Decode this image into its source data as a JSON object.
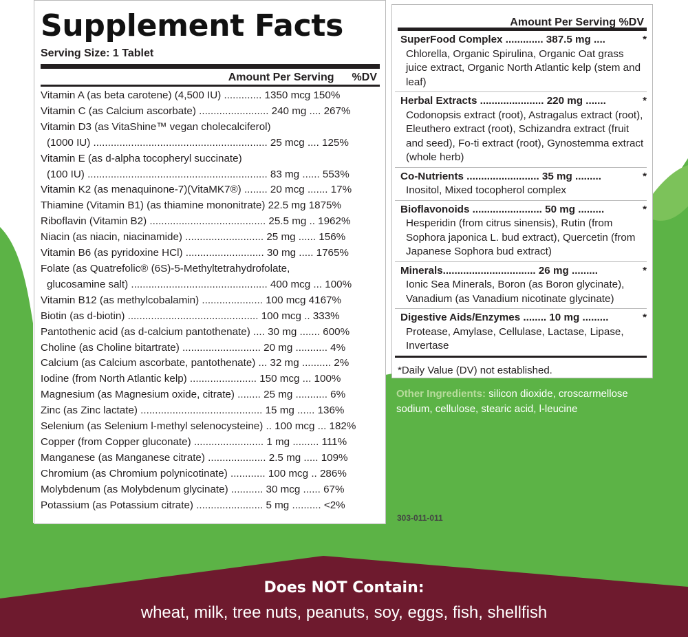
{
  "panel": {
    "title": "Supplement Facts",
    "serving_size": "Serving Size: 1 Tablet",
    "head_amount": "Amount Per Serving",
    "head_dv": "%DV",
    "rows": [
      "Vitamin A (as beta carotene) (4,500 IU) ............. 1350 mcg  150%",
      "Vitamin C (as Calcium ascorbate) ........................ 240 mg .... 267%",
      "Vitamin D3  (as VitaShine™ vegan cholecalciferol)",
      "(1000 IU) ............................................................ 25 mcg .... 125%",
      "Vitamin E (as d-alpha tocopheryl succinate)",
      "(100 IU) .............................................................. 83 mg ...... 553%",
      "Vitamin K2 (as menaquinone-7)(VitaMK7®) ........ 20 mcg ....... 17%",
      "Thiamine (Vitamin B1) (as thiamine mononitrate) 22.5 mg   1875%",
      "Riboflavin (Vitamin B2) ........................................ 25.5 mg .. 1962%",
      "Niacin (as niacin, niacinamide) ........................... 25 mg ...... 156%",
      "Vitamin B6 (as pyridoxine HCl) ........................... 30 mg ..... 1765%",
      "Folate (as Quatrefolic® (6S)-5-Methyltetrahydrofolate,",
      "glucosamine salt) ............................................... 400 mcg ... 100%",
      "Vitamin B12 (as methylcobalamin) ..................... 100 mcg   4167%",
      "Biotin (as d-biotin) ............................................. 100 mcg .. 333%",
      "Pantothenic acid (as d-calcium pantothenate) .... 30 mg ....... 600%",
      "Choline (as Choline bitartrate) ........................... 20 mg ........... 4%",
      "Calcium (as Calcium ascorbate, pantothenate) ... 32 mg .......... 2%",
      "Iodine (from North Atlantic kelp) ....................... 150 mcg ... 100%",
      "Magnesium (as Magnesium oxide, citrate) ........ 25 mg ........... 6%",
      "Zinc (as Zinc lactate) .......................................... 15 mg ...... 136%",
      "Selenium (as Selenium l-methyl selenocysteine) .. 100 mcg ... 182%",
      "Copper (from Copper gluconate) ........................ 1 mg ......... 111%",
      "Manganese (as Manganese citrate) .................... 2.5 mg ..... 109%",
      "Chromium (as Chromium polynicotinate) ............ 100 mcg .. 286%",
      "Molybdenum (as Molybdenum glycinate) ........... 30 mcg ...... 67%",
      "Potassium (as Potassium citrate) ....................... 5 mg .......... <2%"
    ]
  },
  "right": {
    "head": "Amount Per Serving  %DV",
    "groups": [
      {
        "title": "SuperFood Complex ............. 387.5 mg ....",
        "star": "*",
        "text": "Chlorella, Organic Spirulina, Organic Oat grass juice extract, Organic North Atlantic kelp (stem and leaf)"
      },
      {
        "title": "Herbal Extracts ...................... 220 mg .......",
        "star": "*",
        "text": "Codonopsis extract (root), Astragalus extract (root), Eleuthero extract (root), Schizandra extract (fruit and seed), Fo-ti extract (root), Gynostemma extract (whole herb)"
      },
      {
        "title": "Co-Nutrients ......................... 35 mg .........",
        "star": "*",
        "text": "Inositol, Mixed tocopherol complex"
      },
      {
        "title": "Bioflavonoids ........................ 50 mg .........",
        "star": "*",
        "text": "Hesperidin (from citrus sinensis), Rutin (from Sophora japonica L. bud extract), Quercetin (from Japanese Sophora bud extract)"
      },
      {
        "title": "Minerals................................ 26 mg .........",
        "star": "*",
        "text": "Ionic Sea Minerals, Boron (as Boron glycinate), Vanadium (as Vanadium nicotinate glycinate)"
      },
      {
        "title": "Digestive Aids/Enzymes ........ 10 mg .........",
        "star": "*",
        "text": "Protease, Amylase, Cellulase, Lactase, Lipase, Invertase"
      }
    ],
    "footnote": "*Daily Value (DV) not established."
  },
  "other": {
    "label": "Other Ingredients:",
    "text": " silicon dioxide, croscarmellose sodium, cellulose, stearic acid, l-leucine"
  },
  "code": "303-011-011",
  "dnc": {
    "title": "Does NOT Contain:",
    "list": "wheat, milk, tree nuts, peanuts, soy, eggs, fish, shellfish"
  },
  "colors": {
    "green": "#5cb346",
    "maroon": "#6e1a2e",
    "dark": "#231f20"
  }
}
